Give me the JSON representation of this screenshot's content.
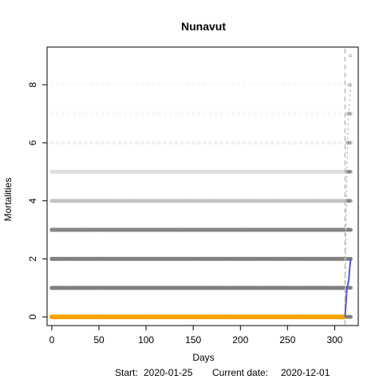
{
  "chart_data": {
    "type": "scatter",
    "title": "Nunavut",
    "xlabel": "Days",
    "ylabel": "Mortalities",
    "footer": {
      "start_label": "Start:",
      "start_date": "2020-01-25",
      "current_label": "Current date:",
      "current_date": "2020-12-01"
    },
    "xlim": [
      -5,
      325
    ],
    "ylim": [
      -0.3,
      9.3
    ],
    "x_ticks": [
      0,
      50,
      100,
      150,
      200,
      250,
      300
    ],
    "y_ticks": [
      0,
      2,
      4,
      6,
      8
    ],
    "x_range_days": [
      0,
      311
    ],
    "current_day": 311,
    "simulation_levels": [
      {
        "value": 0,
        "opacity": 1.0
      },
      {
        "value": 1,
        "opacity": 1.0
      },
      {
        "value": 2,
        "opacity": 1.0
      },
      {
        "value": 3,
        "opacity": 0.95
      },
      {
        "value": 4,
        "opacity": 0.45
      },
      {
        "value": 5,
        "opacity": 0.25
      },
      {
        "value": 6,
        "opacity": 0.1
      },
      {
        "value": 7,
        "opacity": 0.05
      },
      {
        "value": 8,
        "opacity": 0.03
      }
    ],
    "observed_series": {
      "value": 0,
      "color": "#f5a500"
    },
    "projection": {
      "days": [
        311,
        312,
        313,
        314,
        315,
        316,
        317
      ],
      "fitted_line": [
        0,
        0.5,
        1.0,
        1.1,
        1.3,
        1.7,
        2.0
      ],
      "upper_line": [
        0,
        3.0,
        5.0,
        6.5,
        7.0,
        7.5,
        8.0
      ],
      "projection_points": [
        {
          "day": 313,
          "values": [
            0,
            1,
            2,
            3,
            4,
            5,
            6
          ]
        },
        {
          "day": 314,
          "values": [
            0,
            1,
            2,
            3,
            4,
            5,
            6,
            7
          ]
        },
        {
          "day": 315,
          "values": [
            0,
            1,
            2,
            3,
            4,
            5,
            6,
            7,
            8
          ]
        },
        {
          "day": 316,
          "values": [
            0,
            1,
            2,
            3,
            4,
            5,
            6,
            7,
            8,
            9
          ]
        },
        {
          "day": 317,
          "values": [
            0,
            1,
            2,
            3,
            4,
            5,
            6,
            7,
            8,
            9
          ]
        }
      ],
      "fitted_color": "#5555dd",
      "vline_day": 311
    },
    "colors": {
      "simulation_point": "#808080",
      "observed_point": "#f5a500",
      "fitted_line": "#5555dd",
      "vline": "#bbbbbb",
      "axis": "#000000"
    }
  }
}
